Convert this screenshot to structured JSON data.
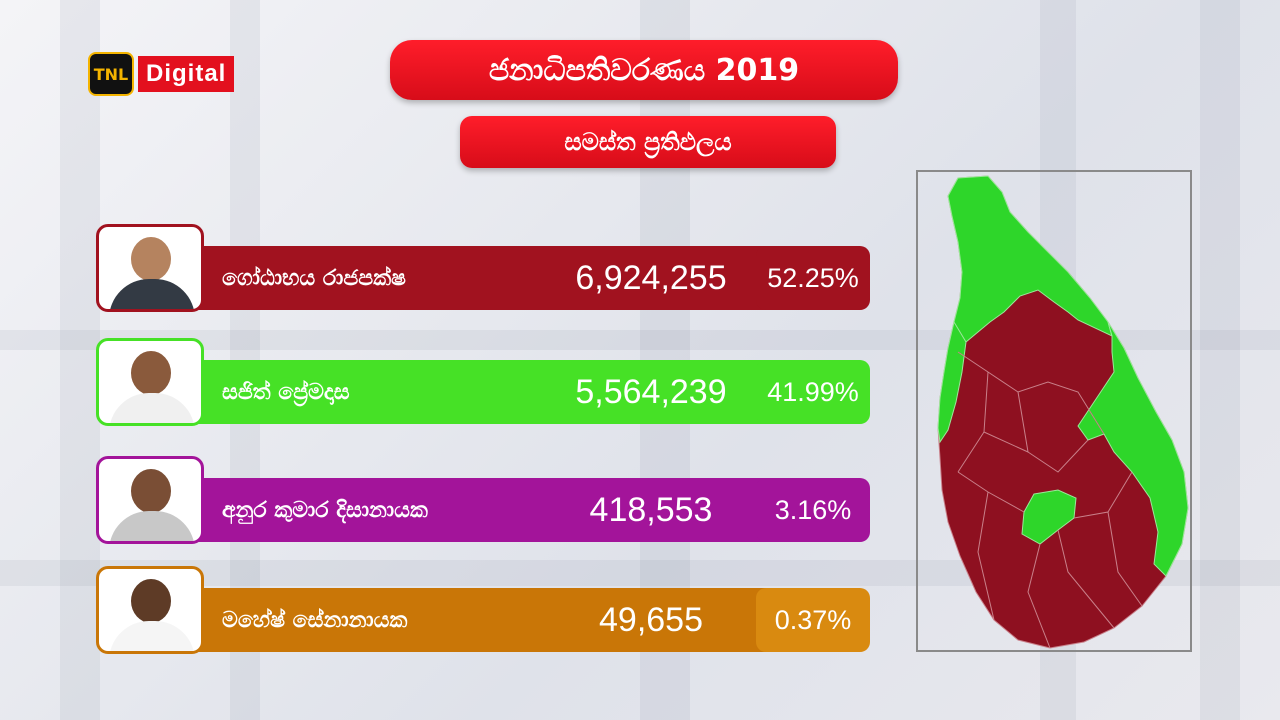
{
  "logo": {
    "badge": "TNL",
    "text": "Digital"
  },
  "title": "ජනාධිපතිවරණය 2019",
  "subtitle": "සමස්ත ප්‍රතිඵලය",
  "colors": {
    "accent_red": "#e3101e"
  },
  "candidates": [
    {
      "name": "ගෝඨාභය රාජපක්ෂ",
      "votes": "6,924,255",
      "percent": "52.25%",
      "color": "#a1121f",
      "pct_color": "#a1121f"
    },
    {
      "name": "සජිත් ප්‍රේමදාස",
      "votes": "5,564,239",
      "percent": "41.99%",
      "color": "#46e126",
      "pct_color": "#46e126"
    },
    {
      "name": "අනුර කුමාර දිසානායක",
      "votes": "418,553",
      "percent": "3.16%",
      "color": "#a3149a",
      "pct_color": "#a3149a"
    },
    {
      "name": "මහේෂ් සේනානායක",
      "votes": "49,655",
      "percent": "0.37%",
      "color": "#c97607",
      "pct_color": "#d98a10"
    }
  ],
  "map": {
    "icon": "sri-lanka-results-map",
    "winner_color": "#8e1020",
    "runner_up_color": "#2ed62a"
  }
}
